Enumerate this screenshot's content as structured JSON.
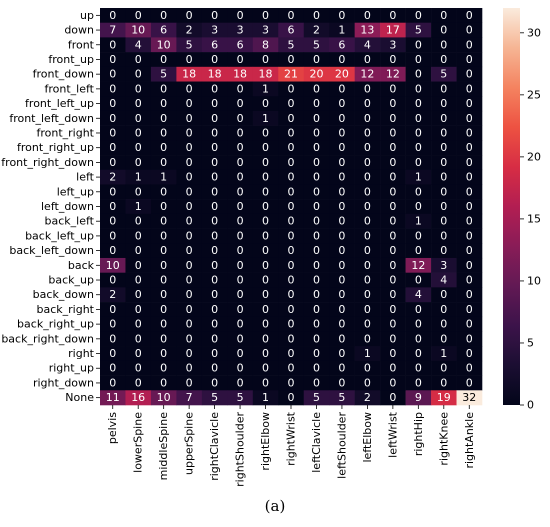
{
  "caption": "(a)",
  "chart_data": {
    "type": "heatmap",
    "rows": [
      "up",
      "down",
      "front",
      "front_up",
      "front_down",
      "front_left",
      "front_left_up",
      "front_left_down",
      "front_right",
      "front_right_up",
      "front_right_down",
      "left",
      "left_up",
      "left_down",
      "back_left",
      "back_left_up",
      "back_left_down",
      "back",
      "back_up",
      "back_down",
      "back_right",
      "back_right_up",
      "back_right_down",
      "right",
      "right_up",
      "right_down",
      "None"
    ],
    "columns": [
      "pelvis",
      "lowerSpine",
      "middleSpine",
      "upperSpine",
      "rightClavicle",
      "rightShoulder",
      "rightElbow",
      "rightWrist",
      "leftClavicle",
      "leftShoulder",
      "leftElbow",
      "leftWrist",
      "rightHip",
      "rightKnee",
      "rightAnkle"
    ],
    "values": [
      [
        0,
        0,
        0,
        0,
        0,
        0,
        0,
        0,
        0,
        0,
        0,
        0,
        0,
        0,
        0
      ],
      [
        7,
        10,
        6,
        2,
        3,
        3,
        3,
        6,
        2,
        1,
        13,
        17,
        5,
        0,
        0
      ],
      [
        0,
        4,
        10,
        5,
        6,
        6,
        8,
        5,
        5,
        6,
        4,
        3,
        0,
        0,
        0
      ],
      [
        0,
        0,
        0,
        0,
        0,
        0,
        0,
        0,
        0,
        0,
        0,
        0,
        0,
        0,
        0
      ],
      [
        0,
        0,
        5,
        18,
        18,
        18,
        18,
        21,
        20,
        20,
        12,
        12,
        0,
        5,
        0
      ],
      [
        0,
        0,
        0,
        0,
        0,
        0,
        1,
        0,
        0,
        0,
        0,
        0,
        0,
        0,
        0
      ],
      [
        0,
        0,
        0,
        0,
        0,
        0,
        0,
        0,
        0,
        0,
        0,
        0,
        0,
        0,
        0
      ],
      [
        0,
        0,
        0,
        0,
        0,
        0,
        1,
        0,
        0,
        0,
        0,
        0,
        0,
        0,
        0
      ],
      [
        0,
        0,
        0,
        0,
        0,
        0,
        0,
        0,
        0,
        0,
        0,
        0,
        0,
        0,
        0
      ],
      [
        0,
        0,
        0,
        0,
        0,
        0,
        0,
        0,
        0,
        0,
        0,
        0,
        0,
        0,
        0
      ],
      [
        0,
        0,
        0,
        0,
        0,
        0,
        0,
        0,
        0,
        0,
        0,
        0,
        0,
        0,
        0
      ],
      [
        2,
        1,
        1,
        0,
        0,
        0,
        0,
        0,
        0,
        0,
        0,
        0,
        1,
        0,
        0
      ],
      [
        0,
        0,
        0,
        0,
        0,
        0,
        0,
        0,
        0,
        0,
        0,
        0,
        0,
        0,
        0
      ],
      [
        0,
        1,
        0,
        0,
        0,
        0,
        0,
        0,
        0,
        0,
        0,
        0,
        0,
        0,
        0
      ],
      [
        0,
        0,
        0,
        0,
        0,
        0,
        0,
        0,
        0,
        0,
        0,
        0,
        1,
        0,
        0
      ],
      [
        0,
        0,
        0,
        0,
        0,
        0,
        0,
        0,
        0,
        0,
        0,
        0,
        0,
        0,
        0
      ],
      [
        0,
        0,
        0,
        0,
        0,
        0,
        0,
        0,
        0,
        0,
        0,
        0,
        0,
        0,
        0
      ],
      [
        10,
        0,
        0,
        0,
        0,
        0,
        0,
        0,
        0,
        0,
        0,
        0,
        12,
        3,
        0
      ],
      [
        0,
        0,
        0,
        0,
        0,
        0,
        0,
        0,
        0,
        0,
        0,
        0,
        0,
        4,
        0
      ],
      [
        2,
        0,
        0,
        0,
        0,
        0,
        0,
        0,
        0,
        0,
        0,
        0,
        4,
        0,
        0
      ],
      [
        0,
        0,
        0,
        0,
        0,
        0,
        0,
        0,
        0,
        0,
        0,
        0,
        0,
        0,
        0
      ],
      [
        0,
        0,
        0,
        0,
        0,
        0,
        0,
        0,
        0,
        0,
        0,
        0,
        0,
        0,
        0
      ],
      [
        0,
        0,
        0,
        0,
        0,
        0,
        0,
        0,
        0,
        0,
        0,
        0,
        0,
        0,
        0
      ],
      [
        0,
        0,
        0,
        0,
        0,
        0,
        0,
        0,
        0,
        0,
        1,
        0,
        0,
        1,
        0
      ],
      [
        0,
        0,
        0,
        0,
        0,
        0,
        0,
        0,
        0,
        0,
        0,
        0,
        0,
        0,
        0
      ],
      [
        0,
        0,
        0,
        0,
        0,
        0,
        0,
        0,
        0,
        0,
        0,
        0,
        0,
        0,
        0
      ],
      [
        11,
        16,
        10,
        7,
        5,
        5,
        1,
        0,
        5,
        5,
        2,
        0,
        9,
        19,
        32
      ]
    ],
    "colorbar": {
      "range": [
        0,
        32
      ],
      "ticks": [
        0,
        5,
        10,
        15,
        20,
        25,
        30
      ],
      "colormap": "rocket"
    },
    "title": "",
    "xlabel": "",
    "ylabel": ""
  }
}
